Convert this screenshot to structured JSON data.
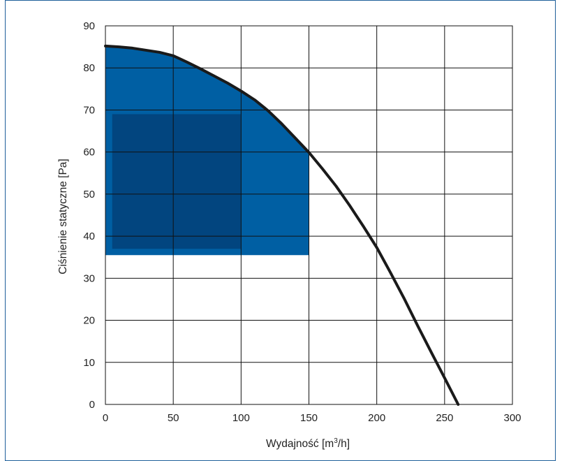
{
  "chart_data": {
    "type": "line",
    "title": "",
    "xlabel": "Wydajność [m³/h]",
    "xlabel_base": "Wydajność [m",
    "xlabel_sup": "3",
    "xlabel_tail": "/h]",
    "ylabel": "Ciśnienie statyczne [Pa]",
    "xlim": [
      0,
      300
    ],
    "ylim": [
      0,
      90
    ],
    "xticks": [
      "0",
      "50",
      "100",
      "150",
      "200",
      "250",
      "300"
    ],
    "yticks": [
      "0",
      "10",
      "20",
      "30",
      "40",
      "50",
      "60",
      "70",
      "80",
      "90"
    ],
    "grid": true,
    "series": [
      {
        "x": [
          0,
          10,
          20,
          30,
          40,
          50,
          60,
          70,
          80,
          90,
          100,
          110,
          120,
          130,
          140,
          150,
          160,
          170,
          180,
          190,
          200,
          210,
          220,
          230,
          240,
          250,
          260
        ],
        "y": [
          85.2,
          85.0,
          84.7,
          84.2,
          83.7,
          82.9,
          81.4,
          79.8,
          78.1,
          76.4,
          74.5,
          72.4,
          69.8,
          66.7,
          63.3,
          59.9,
          56.0,
          51.9,
          47.3,
          42.4,
          37.3,
          31.4,
          25.3,
          18.8,
          12.5,
          6.3,
          0
        ],
        "color": "#1a1a1a"
      }
    ],
    "regions": [
      {
        "shape": "area-under-curve",
        "x_range": [
          0,
          150
        ],
        "y_min": 35.5,
        "color": "#005fa3"
      },
      {
        "shape": "rectangle",
        "x_range": [
          5,
          100
        ],
        "y_range": [
          37,
          69
        ],
        "color": "#02457f"
      }
    ]
  }
}
